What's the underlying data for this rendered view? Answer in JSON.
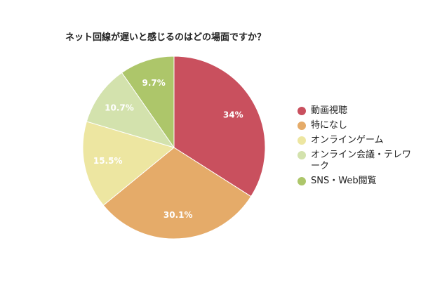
{
  "chart_data": {
    "type": "pie",
    "title": "ネット回線が遅いと感じるのはどの場面ですか？",
    "categories": [
      "動画視聴",
      "特になし",
      "オンラインゲーム",
      "オンライン会議・テレワーク",
      "SNS・Web閲覧"
    ],
    "values": [
      34,
      30.1,
      15.5,
      10.7,
      9.7
    ],
    "value_labels": [
      "34%",
      "30.1%",
      "15.5%",
      "10.7%",
      "9.7%"
    ],
    "colors": [
      "#c9505e",
      "#e5ab69",
      "#ede6a1",
      "#d3e2ad",
      "#adc66a"
    ],
    "start_angle": "12 o'clock",
    "direction": "clockwise",
    "legend_position": "right"
  }
}
